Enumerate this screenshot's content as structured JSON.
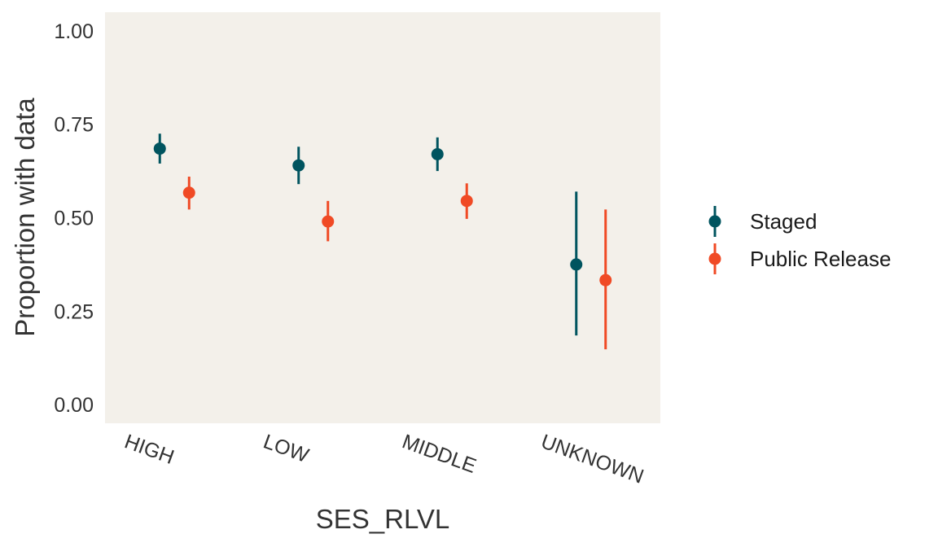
{
  "chart_data": {
    "type": "scatter",
    "subtype": "pointrange",
    "xlabel": "SES_RLVL",
    "ylabel": "Proportion with data",
    "categories": [
      "HIGH",
      "LOW",
      "MIDDLE",
      "UNKNOWN"
    ],
    "ylim": [
      -0.05,
      1.05
    ],
    "yticks": [
      0.0,
      0.25,
      0.5,
      0.75,
      1.0
    ],
    "ytick_labels": [
      "0.00",
      "0.25",
      "0.50",
      "0.75",
      "1.00"
    ],
    "grid": false,
    "panel_background": "#F3F0EA",
    "legend_position": "right",
    "series": [
      {
        "name": "Staged",
        "color": "#00545F",
        "values": [
          0.685,
          0.64,
          0.67,
          0.375
        ],
        "lower": [
          0.645,
          0.59,
          0.625,
          0.185
        ],
        "upper": [
          0.725,
          0.69,
          0.715,
          0.57
        ]
      },
      {
        "name": "Public Release",
        "color": "#F04A25",
        "values": [
          0.567,
          0.49,
          0.545,
          0.333
        ],
        "lower": [
          0.522,
          0.437,
          0.497,
          0.148
        ],
        "upper": [
          0.61,
          0.545,
          0.592,
          0.522
        ]
      }
    ]
  }
}
